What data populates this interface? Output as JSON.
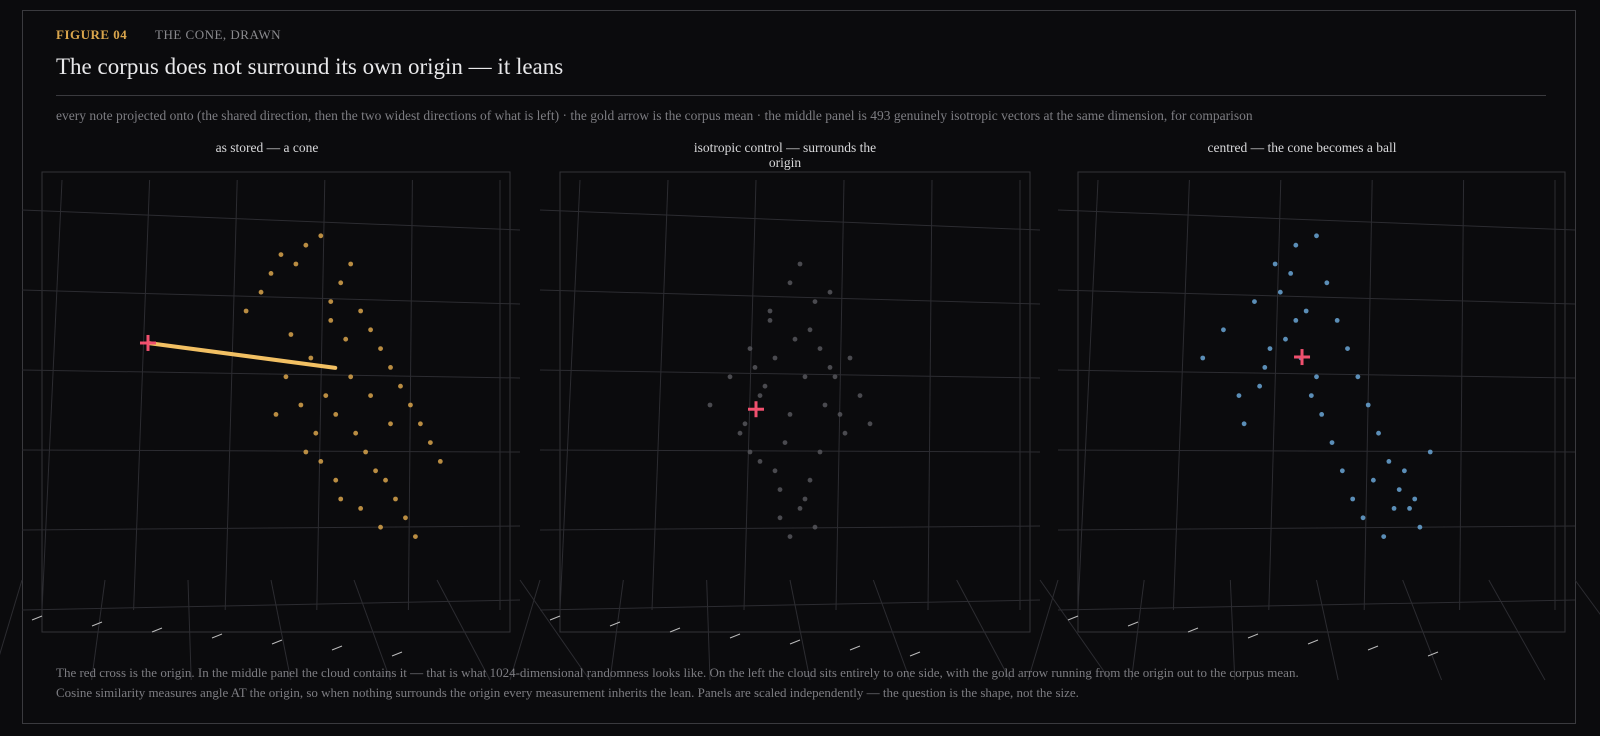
{
  "header": {
    "figure": "FIGURE 04",
    "kicker": "THE CONE, DRAWN",
    "title": "The corpus does not surround its own origin — it leans",
    "subtitle": "every note projected onto (the shared direction, then the two widest directions of what is left)  ·  the gold arrow is the corpus mean  ·  the middle panel is 493 genuinely isotropic vectors at the same dimension, for comparison"
  },
  "footer": [
    "The red cross is the origin. In the middle panel the cloud contains it — that is what 1024-dimensional randomness looks like. On the left the cloud sits entirely to one side, with the gold arrow running from the origin out to the corpus mean.",
    "Cosine similarity measures angle AT the origin, so when nothing surrounds the origin every measurement inherits the lean. Panels are scaled independently — the question is the shape, not the size."
  ],
  "chart_data": [
    {
      "type": "scatter",
      "title": "as stored — a cone",
      "color": "#d9a54c",
      "xlim": [
        0,
        100
      ],
      "ylim": [
        0,
        100
      ],
      "x": [
        45,
        48,
        50,
        52,
        55,
        57,
        60,
        62,
        64,
        66,
        68,
        70,
        72,
        74,
        76,
        78,
        80,
        82,
        84,
        58,
        61,
        63,
        67,
        69,
        71,
        53,
        56,
        59,
        65,
        73,
        75,
        77,
        79,
        54,
        62,
        66,
        70,
        60,
        64,
        68,
        72,
        51,
        57,
        63,
        74
      ],
      "y": [
        70,
        74,
        78,
        82,
        80,
        84,
        86,
        72,
        76,
        80,
        70,
        66,
        62,
        58,
        54,
        50,
        46,
        42,
        38,
        60,
        52,
        48,
        44,
        40,
        36,
        56,
        50,
        44,
        64,
        34,
        30,
        26,
        22,
        65,
        68,
        56,
        52,
        38,
        30,
        28,
        24,
        48,
        40,
        34,
        46
      ],
      "origin": [
        25.3,
        63.2
      ],
      "arrow_end": [
        62.9,
        57.9
      ],
      "origin_color": "#f0506e",
      "arrow_color": "#f2c063"
    },
    {
      "type": "scatter",
      "title": "isotropic control — surrounds the origin",
      "color": "#56565c",
      "xlim": [
        0,
        100
      ],
      "ylim": [
        0,
        100
      ],
      "x": [
        34,
        38,
        40,
        42,
        44,
        46,
        48,
        50,
        52,
        54,
        56,
        58,
        60,
        62,
        64,
        66,
        45,
        47,
        49,
        51,
        53,
        55,
        57,
        41,
        43,
        59,
        61,
        50,
        52,
        48,
        46,
        54,
        56,
        44,
        58,
        42,
        50,
        53,
        47,
        55
      ],
      "y": [
        50,
        56,
        44,
        62,
        38,
        70,
        32,
        76,
        28,
        66,
        40,
        58,
        48,
        60,
        52,
        46,
        54,
        36,
        42,
        64,
        30,
        72,
        50,
        46,
        58,
        56,
        44,
        22,
        80,
        26,
        68,
        34,
        62,
        52,
        74,
        40,
        48,
        56,
        60,
        24
      ],
      "origin": [
        43.2,
        49.1
      ],
      "origin_color": "#f0506e"
    },
    {
      "type": "scatter",
      "title": "centred — the cone becomes a ball",
      "color": "#6aa6d6",
      "xlim": [
        0,
        100
      ],
      "ylim": [
        0,
        100
      ],
      "x": [
        28,
        32,
        35,
        38,
        40,
        42,
        44,
        46,
        48,
        50,
        52,
        54,
        56,
        58,
        60,
        62,
        64,
        66,
        68,
        70,
        72,
        36,
        39,
        41,
        43,
        45,
        47,
        49,
        51,
        53,
        55,
        57,
        59,
        61,
        63,
        65,
        67,
        69,
        46,
        50
      ],
      "y": [
        60,
        66,
        52,
        72,
        58,
        80,
        64,
        84,
        70,
        86,
        76,
        68,
        62,
        56,
        50,
        44,
        38,
        32,
        28,
        24,
        40,
        46,
        54,
        62,
        74,
        78,
        60,
        52,
        48,
        42,
        36,
        30,
        26,
        34,
        22,
        28,
        36,
        30,
        68,
        56
      ],
      "origin": [
        47.2,
        60.2
      ],
      "origin_color": "#f0506e"
    }
  ]
}
